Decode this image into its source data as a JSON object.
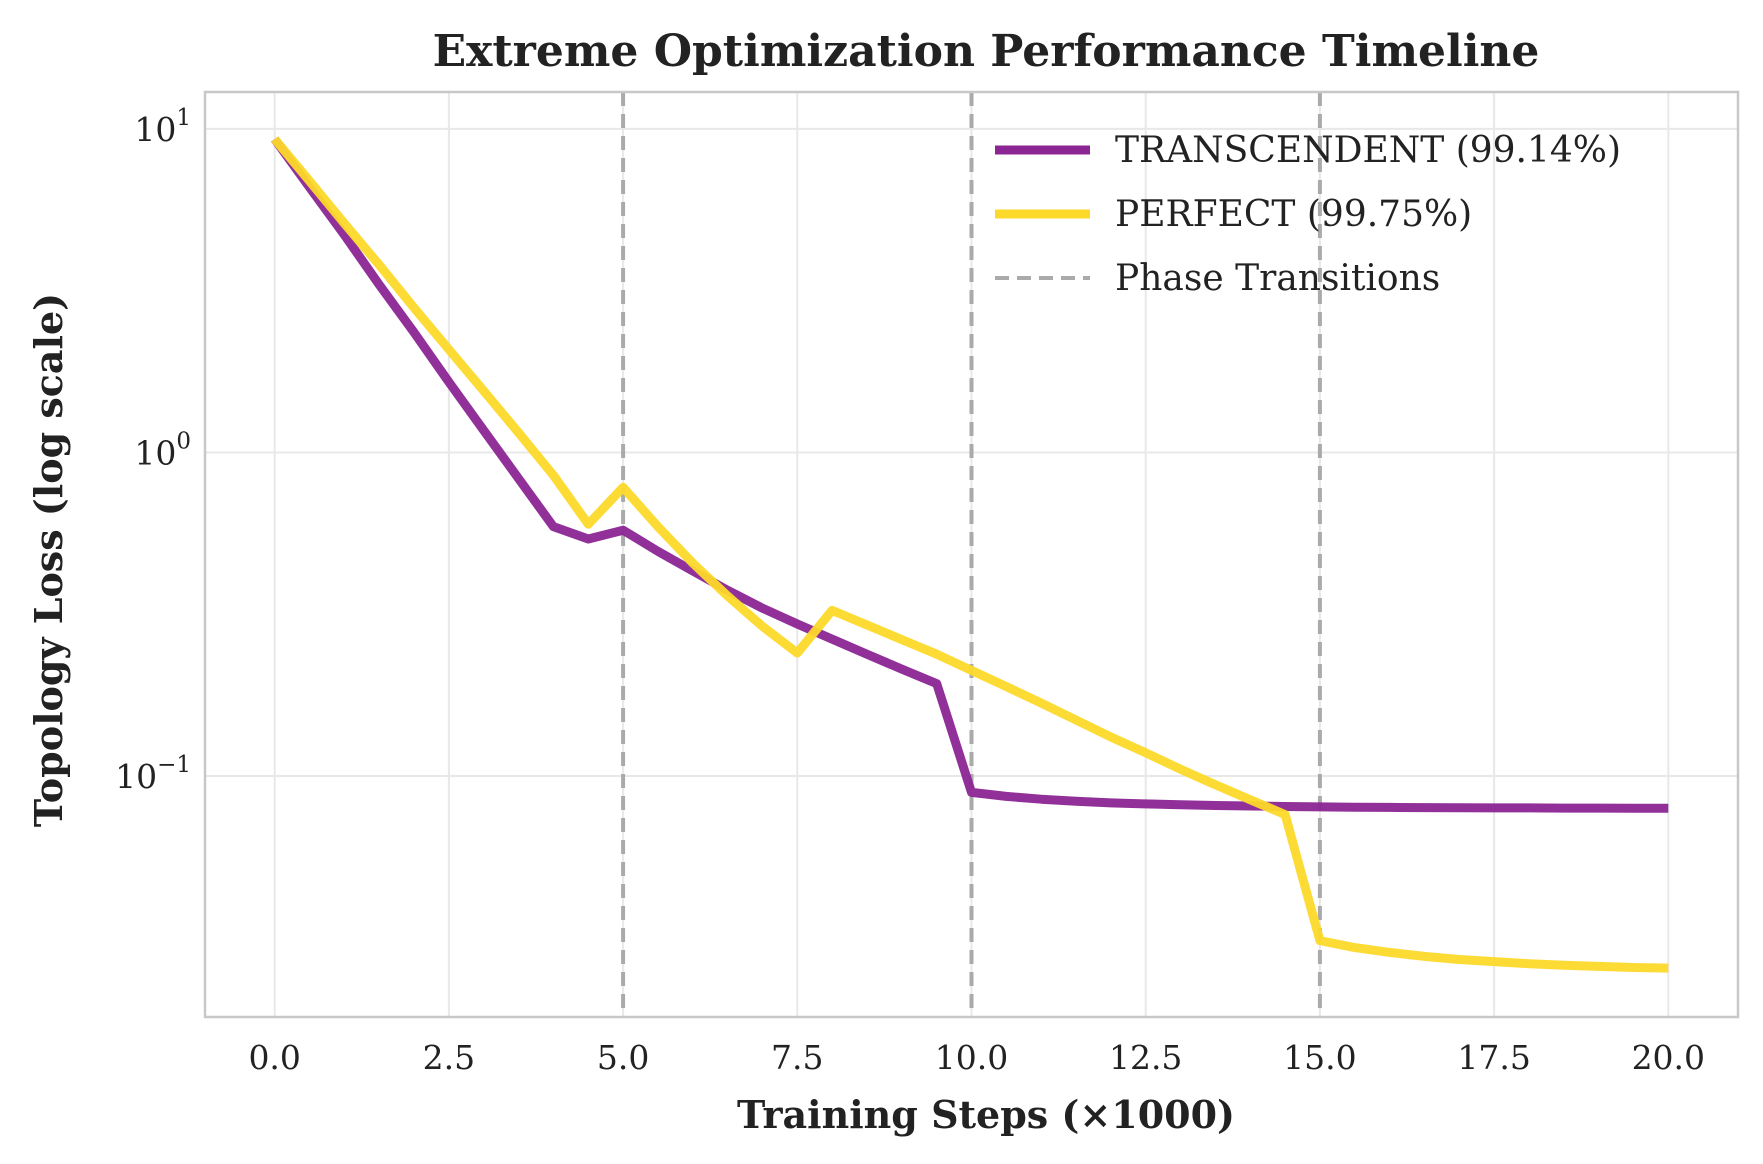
{
  "chart_data": {
    "type": "line",
    "title": "Extreme Optimization Performance Timeline",
    "xlabel": "Training Steps (×1000)",
    "ylabel": "Topology Loss (log scale)",
    "xlim": [
      -1.0,
      21.0
    ],
    "ylim": [
      0.018,
      13.0
    ],
    "yscale": "log",
    "grid": true,
    "legend_position": "top-right",
    "x_ticks": [
      0.0,
      2.5,
      5.0,
      7.5,
      10.0,
      12.5,
      15.0,
      17.5,
      20.0
    ],
    "x_tick_labels": [
      "0.0",
      "2.5",
      "5.0",
      "7.5",
      "10.0",
      "12.5",
      "15.0",
      "17.5",
      "20.0"
    ],
    "y_ticks": [
      {
        "value": 10,
        "base": "10",
        "exp": "1"
      },
      {
        "value": 1,
        "base": "10",
        "exp": "0"
      },
      {
        "value": 0.1,
        "base": "10",
        "exp": "−1"
      }
    ],
    "series": [
      {
        "name": "TRANSCENDENT (99.14%)",
        "color": "#8b2594",
        "x": [
          0.0,
          0.5,
          1.0,
          1.5,
          2.0,
          2.5,
          3.0,
          3.5,
          4.0,
          4.5,
          5.0,
          5.5,
          6.0,
          6.5,
          7.0,
          7.5,
          8.0,
          8.5,
          9.0,
          9.5,
          10.0,
          10.5,
          11.0,
          11.5,
          12.0,
          12.5,
          13.0,
          13.5,
          14.0,
          14.5,
          15.0,
          15.5,
          16.0,
          16.5,
          17.0,
          17.5,
          18.0,
          18.5,
          19.0,
          19.5,
          20.0
        ],
        "values": [
          9.3,
          6.6,
          4.7,
          3.3,
          2.35,
          1.65,
          1.17,
          0.83,
          0.59,
          0.54,
          0.575,
          0.495,
          0.43,
          0.375,
          0.33,
          0.295,
          0.265,
          0.238,
          0.214,
          0.193,
          0.089,
          0.0865,
          0.0848,
          0.0836,
          0.0826,
          0.082,
          0.0815,
          0.0811,
          0.0808,
          0.0805,
          0.0803,
          0.0801,
          0.08,
          0.0799,
          0.0798,
          0.0797,
          0.0797,
          0.0796,
          0.0796,
          0.0795,
          0.0795
        ]
      },
      {
        "name": "PERFECT (99.75%)",
        "color": "#fdd92a",
        "x": [
          0.0,
          0.5,
          1.0,
          1.5,
          2.0,
          2.5,
          3.0,
          3.5,
          4.0,
          4.5,
          5.0,
          5.5,
          6.0,
          6.5,
          7.0,
          7.5,
          8.0,
          8.5,
          9.0,
          9.5,
          10.0,
          10.5,
          11.0,
          11.5,
          12.0,
          12.5,
          13.0,
          13.5,
          14.0,
          14.5,
          15.0,
          15.5,
          16.0,
          16.5,
          17.0,
          17.5,
          18.0,
          18.5,
          19.0,
          19.5,
          20.0
        ],
        "values": [
          9.3,
          6.9,
          5.1,
          3.8,
          2.8,
          2.08,
          1.55,
          1.15,
          0.85,
          0.6,
          0.78,
          0.59,
          0.455,
          0.36,
          0.29,
          0.24,
          0.325,
          0.293,
          0.264,
          0.238,
          0.212,
          0.189,
          0.168,
          0.149,
          0.132,
          0.118,
          0.105,
          0.094,
          0.0845,
          0.076,
          0.031,
          0.0295,
          0.0285,
          0.0277,
          0.0271,
          0.0267,
          0.0263,
          0.026,
          0.0258,
          0.0256,
          0.0255
        ]
      }
    ],
    "phase_transitions": {
      "label": "Phase Transitions",
      "color": "#aaaaaa",
      "x": [
        5.0,
        10.0,
        15.0
      ]
    }
  }
}
